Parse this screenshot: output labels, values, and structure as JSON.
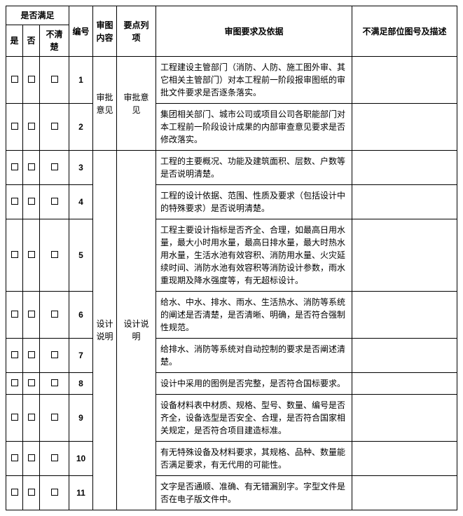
{
  "header": {
    "satisfy": "是否满足",
    "yes": "是",
    "no": "否",
    "unclear": "不清楚",
    "number": "编号",
    "review_content": "审图内容",
    "item": "要点列项",
    "requirement": "审图要求及依据",
    "desc": "不满足部位图号及描述"
  },
  "groups": [
    {
      "review_content": "审批意见",
      "item": "审批意见",
      "rows": [
        {
          "num": "1",
          "req": "工程建设主管部门（消防、人防、施工图外审、其它相关主管部门）对本工程前一阶段报审图纸的审批文件要求是否逐条落实。"
        },
        {
          "num": "2",
          "req": "集团相关部门、城市公司或项目公司各职能部门对本工程前一阶段设计成果的内部审查意见要求是否修改落实。"
        }
      ]
    },
    {
      "review_content": "设计说明",
      "item": "设计说明",
      "rows": [
        {
          "num": "3",
          "req": "工程的主要概况、功能及建筑面积、层数、户数等是否说明清楚。"
        },
        {
          "num": "4",
          "req": "工程的设计依据、范围、性质及要求（包括设计中的特殊要求）是否说明清楚。"
        },
        {
          "num": "5",
          "req": "工程主要设计指标是否齐全、合理，如最高日用水量，最大小时用水量，最高日排水量，最大时热水用水量，生活水池有效容积、消防用水量、火灾延续时间、消防水池有效容积等消防设计参数，雨水重现期及降水强度等，有无超标设计。"
        },
        {
          "num": "6",
          "req": "给水、中水、排水、雨水、生活热水、消防等系统的阐述是否清楚，是否清晰、明确，是否符合强制性规范。"
        },
        {
          "num": "7",
          "req": "给排水、消防等系统对自动控制的要求是否阐述清楚。"
        },
        {
          "num": "8",
          "req": "设计中采用的图例是否完整，是否符合国标要求。"
        },
        {
          "num": "9",
          "req": "设备材料表中材质、规格、型号、数量、编号是否齐全，设备选型是否安全、合理，是否符合国家相关规定，是否符合项目建造标准。"
        },
        {
          "num": "10",
          "req": "有无特殊设备及材料要求，其规格、品种、数量能否满足要求，有无代用的可能性。"
        },
        {
          "num": "11",
          "req": "文字是否通顺、准确、有无错漏别字。字型文件是否在电子版文件中。"
        }
      ]
    }
  ]
}
